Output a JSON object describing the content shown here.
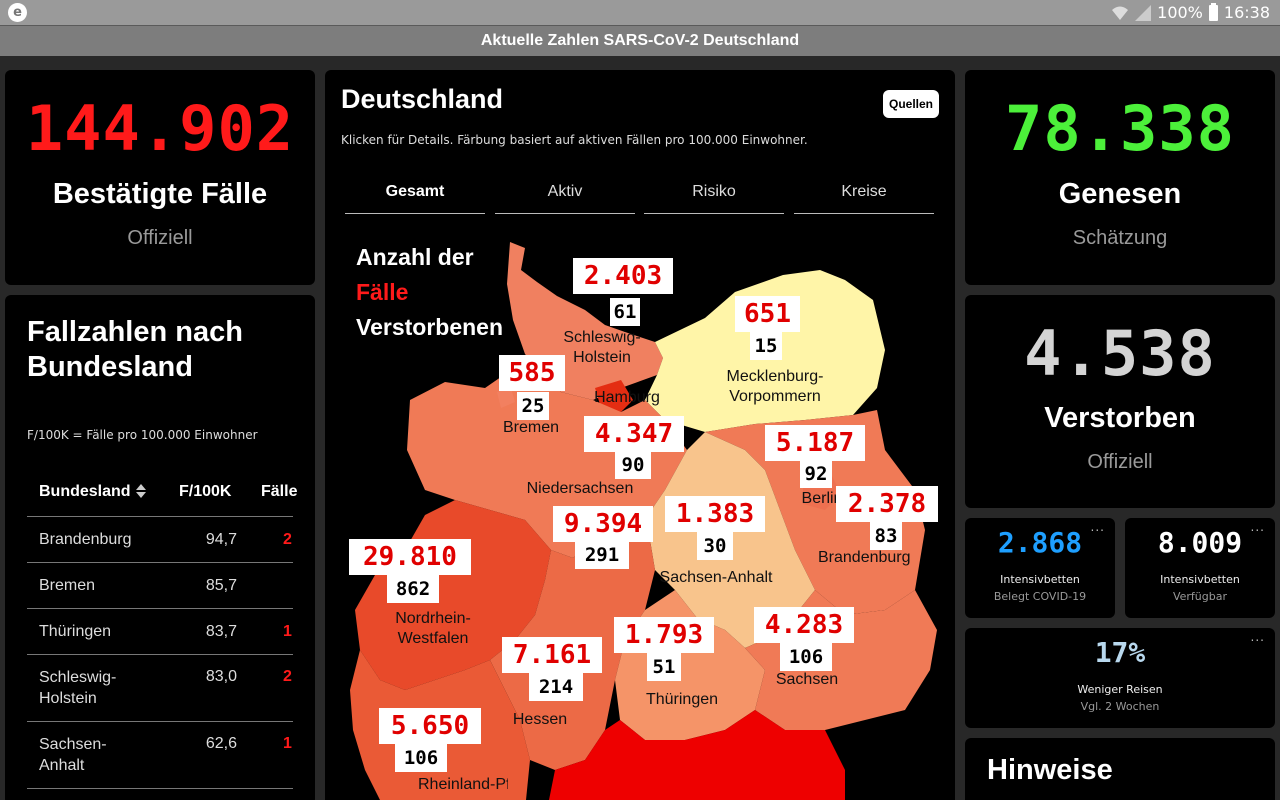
{
  "status_bar": {
    "app_icon": "e",
    "battery": "100%",
    "time": "16:38",
    "icons": [
      "wifi-icon",
      "signal-icon",
      "battery-icon"
    ]
  },
  "title": "Aktuelle Zahlen SARS-CoV-2 Deutschland",
  "confirmed": {
    "value": "144.902",
    "label": "Bestätigte Fälle",
    "sub": "Offiziell",
    "color": "#ff1a1a"
  },
  "recovered": {
    "value": "78.338",
    "label": "Genesen",
    "sub": "Schätzung",
    "color": "#4cf03a"
  },
  "deaths": {
    "value": "4.538",
    "label": "Verstorben",
    "sub": "Offiziell",
    "color": "#d4d4d4"
  },
  "states_table": {
    "title": "Fallzahlen nach Bundesland",
    "note": "F/100K = Fälle pro 100.000 Einwohner",
    "headers": [
      "Bundesland",
      "F/100K",
      "Fälle"
    ],
    "rows": [
      {
        "name": "Brandenburg",
        "f100k": "94,7",
        "cases": "2"
      },
      {
        "name": "Bremen",
        "f100k": "85,7",
        "cases": ""
      },
      {
        "name": "Thüringen",
        "f100k": "83,7",
        "cases": "1"
      },
      {
        "name": "Schleswig-Holstein",
        "f100k": "83,0",
        "cases": "2"
      },
      {
        "name": "Sachsen-Anhalt",
        "f100k": "62,6",
        "cases": "1"
      }
    ]
  },
  "map": {
    "title": "Deutschland",
    "sources_button": "Quellen",
    "description": "Klicken für Details. Färbung basiert auf aktiven Fällen pro 100.000 Einwohner.",
    "tabs": [
      "Gesamt",
      "Aktiv",
      "Risiko",
      "Kreise"
    ],
    "active_tab": "Gesamt",
    "legend": {
      "line1": "Anzahl der",
      "line2": "Fälle",
      "line3": "Verstorbenen"
    },
    "regions": [
      {
        "name": "Schleswig-Holstein",
        "cases": "2.403",
        "deaths": "61"
      },
      {
        "name": "Mecklenburg-Vorpommern",
        "cases": "651",
        "deaths": "15"
      },
      {
        "name": "Bremen",
        "cases": "585",
        "deaths": "25"
      },
      {
        "name": "Hamburg",
        "cases": "4.347",
        "deaths": "90"
      },
      {
        "name": "Berlin",
        "cases": "5.187",
        "deaths": "92"
      },
      {
        "name": "Brandenburg",
        "cases": "2.378",
        "deaths": "83"
      },
      {
        "name": "Niedersachsen",
        "cases": "9.394",
        "deaths": "291"
      },
      {
        "name": "Sachsen-Anhalt",
        "cases": "1.383",
        "deaths": "30"
      },
      {
        "name": "Nordrhein-Westfalen",
        "cases": "29.810",
        "deaths": "862"
      },
      {
        "name": "Hessen",
        "cases": "7.161",
        "deaths": "214"
      },
      {
        "name": "Thüringen",
        "cases": "1.793",
        "deaths": "51"
      },
      {
        "name": "Sachsen",
        "cases": "4.283",
        "deaths": "106"
      },
      {
        "name": "Rheinland-Pfalz",
        "cases": "5.650",
        "deaths": "106"
      }
    ],
    "map_labels": {
      "schleswig": "Schleswig-Holstein",
      "hamburg": "Hamburg",
      "mv": "Mecklenburg-Vorpommern",
      "bremen": "Bremen",
      "nds": "Niedersachsen",
      "berlin": "Berlin",
      "bb": "Brandenburg",
      "sa": "Sachsen-Anhalt",
      "nrw": "Nordrhein-Westfalen",
      "th": "Thüringen",
      "sn": "Sachsen",
      "he": "Hessen",
      "rp": "Rheinland-Pfalz"
    }
  },
  "icu_occupied": {
    "value": "2.868",
    "label": "Intensivbetten",
    "sub": "Belegt COVID-19",
    "color": "#1e9fff"
  },
  "icu_free": {
    "value": "8.009",
    "label": "Intensivbetten",
    "sub": "Verfügbar",
    "color": "#ffffff"
  },
  "travel": {
    "value": "17%",
    "label": "Weniger Reisen",
    "sub": "Vgl. 2 Wochen",
    "color": "#b8d8ee"
  },
  "more_menu": "...",
  "hinweise": "Hinweise"
}
